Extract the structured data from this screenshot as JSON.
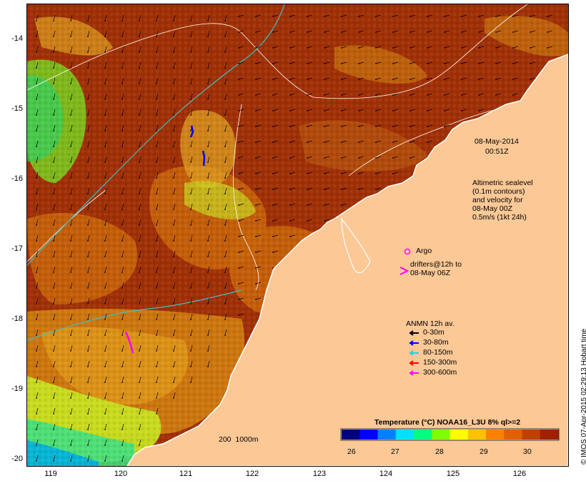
{
  "axes": {
    "x_ticks": [
      "119",
      "120",
      "121",
      "122",
      "123",
      "124",
      "125",
      "126"
    ],
    "y_ticks": [
      "-14",
      "-15",
      "-16",
      "-17",
      "-18",
      "-19",
      "-20"
    ],
    "x_range": [
      118.6,
      126.7
    ],
    "y_range": [
      -20.05,
      -13.5
    ]
  },
  "annotations": {
    "date_line1": "08-May-2014",
    "date_line2": "00:51Z",
    "altimetry_lines": [
      "Altimetric sealevel",
      "(0.1m contours)",
      "and velocity for",
      "08-May 00Z",
      "0.5m/s (1kt 24h)"
    ],
    "argo_label": "Argo",
    "drifters_line1": "drifters@12h to",
    "drifters_line2": "08-May 06Z",
    "anmn_title": "ANMN 12h av.",
    "anmn_items": [
      {
        "label": "0-30m",
        "color": "#000000"
      },
      {
        "label": "30-80m",
        "color": "#0000ff"
      },
      {
        "label": "80-150m",
        "color": "#00e0e0"
      },
      {
        "label": "150-300m",
        "color": "#ff0000"
      },
      {
        "label": "300-600m",
        "color": "#ff00ff"
      }
    ],
    "isobath_label": "200  1000m"
  },
  "colorbar": {
    "title": "Temperature (°C) NOAA16_L3U 8% ql>=2",
    "ticks": [
      "26",
      "27",
      "28",
      "29",
      "30"
    ],
    "colors": [
      "#000080",
      "#0000ff",
      "#0080ff",
      "#00e0ff",
      "#00ff80",
      "#80ff00",
      "#ffff00",
      "#ffc000",
      "#ff8000",
      "#e06000",
      "#c04000",
      "#a02000"
    ]
  },
  "credit": "© IMOS 07-Apr-2015 02:29:13 Hobart time",
  "colors": {
    "land": "#fbc896",
    "sea_warm": "#a03006",
    "sea_mid": "#c8640a",
    "sea_cool": "#e0a020",
    "coast": "#ffffff",
    "isobath": "#40c0c0",
    "contour": "#ffffff",
    "argo": "#ff00ff"
  }
}
